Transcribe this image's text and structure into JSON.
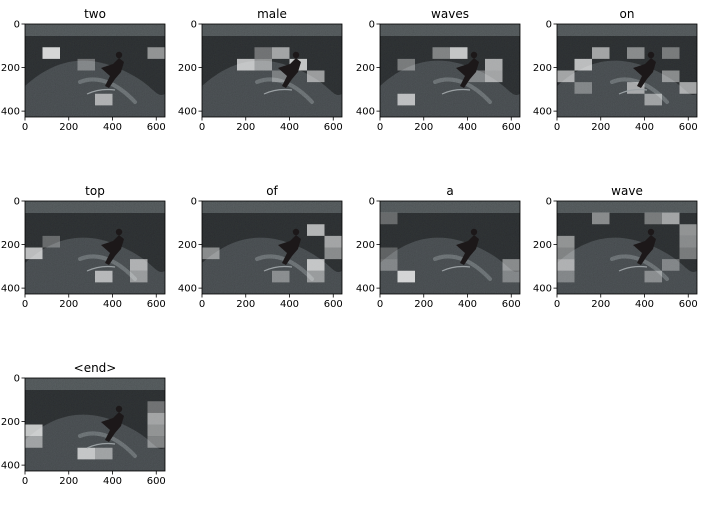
{
  "chart_data": {
    "type": "heatmap",
    "grid": false,
    "xlim": [
      0,
      640
    ],
    "ylim": [
      427,
      0
    ],
    "xticks": [
      0,
      200,
      400,
      600
    ],
    "yticks": [
      0,
      200,
      400
    ],
    "attention_grid": [
      8,
      8
    ],
    "panels": [
      {
        "title": "two",
        "attention": [
          [
            2,
            1,
            100
          ],
          [
            6,
            4,
            70
          ],
          [
            2,
            7,
            60
          ],
          [
            3,
            3,
            40
          ]
        ]
      },
      {
        "title": "male",
        "attention": [
          [
            3,
            2,
            85
          ],
          [
            3,
            5,
            90
          ],
          [
            2,
            4,
            70
          ],
          [
            3,
            3,
            60
          ],
          [
            4,
            6,
            65
          ],
          [
            2,
            3,
            40
          ],
          [
            4,
            4,
            35
          ]
        ]
      },
      {
        "title": "waves",
        "attention": [
          [
            2,
            4,
            90
          ],
          [
            3,
            6,
            75
          ],
          [
            4,
            6,
            70
          ],
          [
            6,
            1,
            80
          ],
          [
            2,
            3,
            50
          ],
          [
            3,
            1,
            45
          ],
          [
            4,
            5,
            40
          ]
        ]
      },
      {
        "title": "on",
        "attention": [
          [
            3,
            1,
            85
          ],
          [
            2,
            2,
            70
          ],
          [
            2,
            4,
            55
          ],
          [
            4,
            0,
            70
          ],
          [
            5,
            4,
            65
          ],
          [
            5,
            7,
            70
          ],
          [
            6,
            5,
            60
          ],
          [
            4,
            6,
            55
          ],
          [
            5,
            1,
            40
          ],
          [
            2,
            6,
            45
          ]
        ]
      },
      {
        "title": "top",
        "attention": [
          [
            4,
            0,
            85
          ],
          [
            5,
            6,
            70
          ],
          [
            6,
            4,
            75
          ],
          [
            6,
            6,
            55
          ],
          [
            3,
            1,
            35
          ]
        ]
      },
      {
        "title": "of",
        "attention": [
          [
            2,
            6,
            80
          ],
          [
            3,
            7,
            70
          ],
          [
            4,
            7,
            55
          ],
          [
            4,
            0,
            55
          ],
          [
            5,
            6,
            85
          ],
          [
            6,
            6,
            55
          ],
          [
            6,
            4,
            45
          ]
        ]
      },
      {
        "title": "a",
        "attention": [
          [
            6,
            1,
            95
          ],
          [
            5,
            0,
            40
          ],
          [
            1,
            0,
            35
          ],
          [
            5,
            7,
            55
          ],
          [
            6,
            7,
            40
          ],
          [
            4,
            0,
            30
          ]
        ]
      },
      {
        "title": "wave",
        "attention": [
          [
            1,
            2,
            55
          ],
          [
            1,
            6,
            70
          ],
          [
            1,
            5,
            45
          ],
          [
            2,
            7,
            60
          ],
          [
            3,
            7,
            55
          ],
          [
            4,
            7,
            45
          ],
          [
            3,
            0,
            60
          ],
          [
            4,
            0,
            50
          ],
          [
            5,
            0,
            70
          ],
          [
            6,
            0,
            40
          ],
          [
            5,
            6,
            40
          ],
          [
            6,
            5,
            45
          ]
        ]
      },
      {
        "title": "<end>",
        "attention": [
          [
            4,
            0,
            90
          ],
          [
            5,
            0,
            60
          ],
          [
            6,
            3,
            85
          ],
          [
            6,
            4,
            60
          ],
          [
            3,
            7,
            70
          ],
          [
            4,
            7,
            60
          ],
          [
            5,
            7,
            50
          ],
          [
            2,
            7,
            40
          ]
        ]
      }
    ]
  },
  "colors": {
    "image_dark": "#2e3133",
    "image_mid": "#4a4f52",
    "sky": "#545a5c",
    "surfer": "#1c1819",
    "highlight": "#ffffff"
  }
}
